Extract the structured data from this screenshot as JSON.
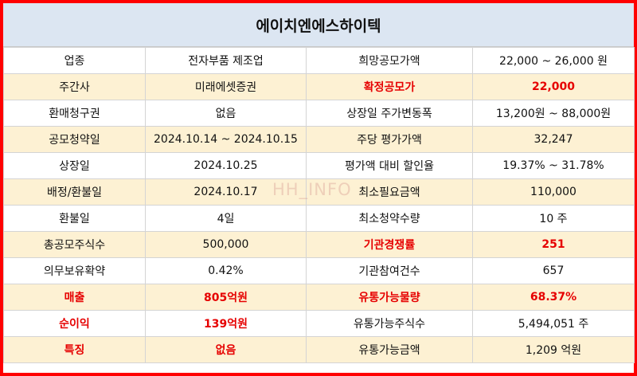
{
  "title": "에이치엔에스하이텍",
  "watermark": "HH_INFO",
  "colors": {
    "border": "#ff0000",
    "header_bg": "#dce6f2",
    "alt_row": "#fdf1d3",
    "highlight": "#e60000"
  },
  "rows": [
    {
      "l_label": "업종",
      "l_value": "전자부품 제조업",
      "r_label": "희망공모가액",
      "r_value": "22,000 ~ 26,000 원"
    },
    {
      "l_label": "주간사",
      "l_value": "미래에셋증권",
      "r_label": "확정공모가",
      "r_value": "22,000"
    },
    {
      "l_label": "환매청구권",
      "l_value": "없음",
      "r_label": "상장일 주가변동폭",
      "r_value": "13,200원 ~ 88,000원"
    },
    {
      "l_label": "공모청약일",
      "l_value": "2024.10.14  ~  2024.10.15",
      "r_label": "주당 평가가액",
      "r_value": "32,247"
    },
    {
      "l_label": "상장일",
      "l_value": "2024.10.25",
      "r_label": "평가액 대비 할인율",
      "r_value": "19.37% ~ 31.78%"
    },
    {
      "l_label": "배정/환불일",
      "l_value": "2024.10.17",
      "r_label": "최소필요금액",
      "r_value": "110,000"
    },
    {
      "l_label": "환불일",
      "l_value": "4일",
      "r_label": "최소청약수량",
      "r_value": "10 주"
    },
    {
      "l_label": "총공모주식수",
      "l_value": "500,000",
      "r_label": "기관경쟁률",
      "r_value": "251"
    },
    {
      "l_label": "의무보유확약",
      "l_value": "0.42%",
      "r_label": "기관참여건수",
      "r_value": "657"
    },
    {
      "l_label": "매출",
      "l_value": "805억원",
      "r_label": "유통가능물량",
      "r_value": "68.37%"
    },
    {
      "l_label": "순이익",
      "l_value": "139억원",
      "r_label": "유통가능주식수",
      "r_value": "5,494,051 주"
    },
    {
      "l_label": "특징",
      "l_value": "없음",
      "r_label": "유통가능금액",
      "r_value": "1,209 억원"
    }
  ]
}
